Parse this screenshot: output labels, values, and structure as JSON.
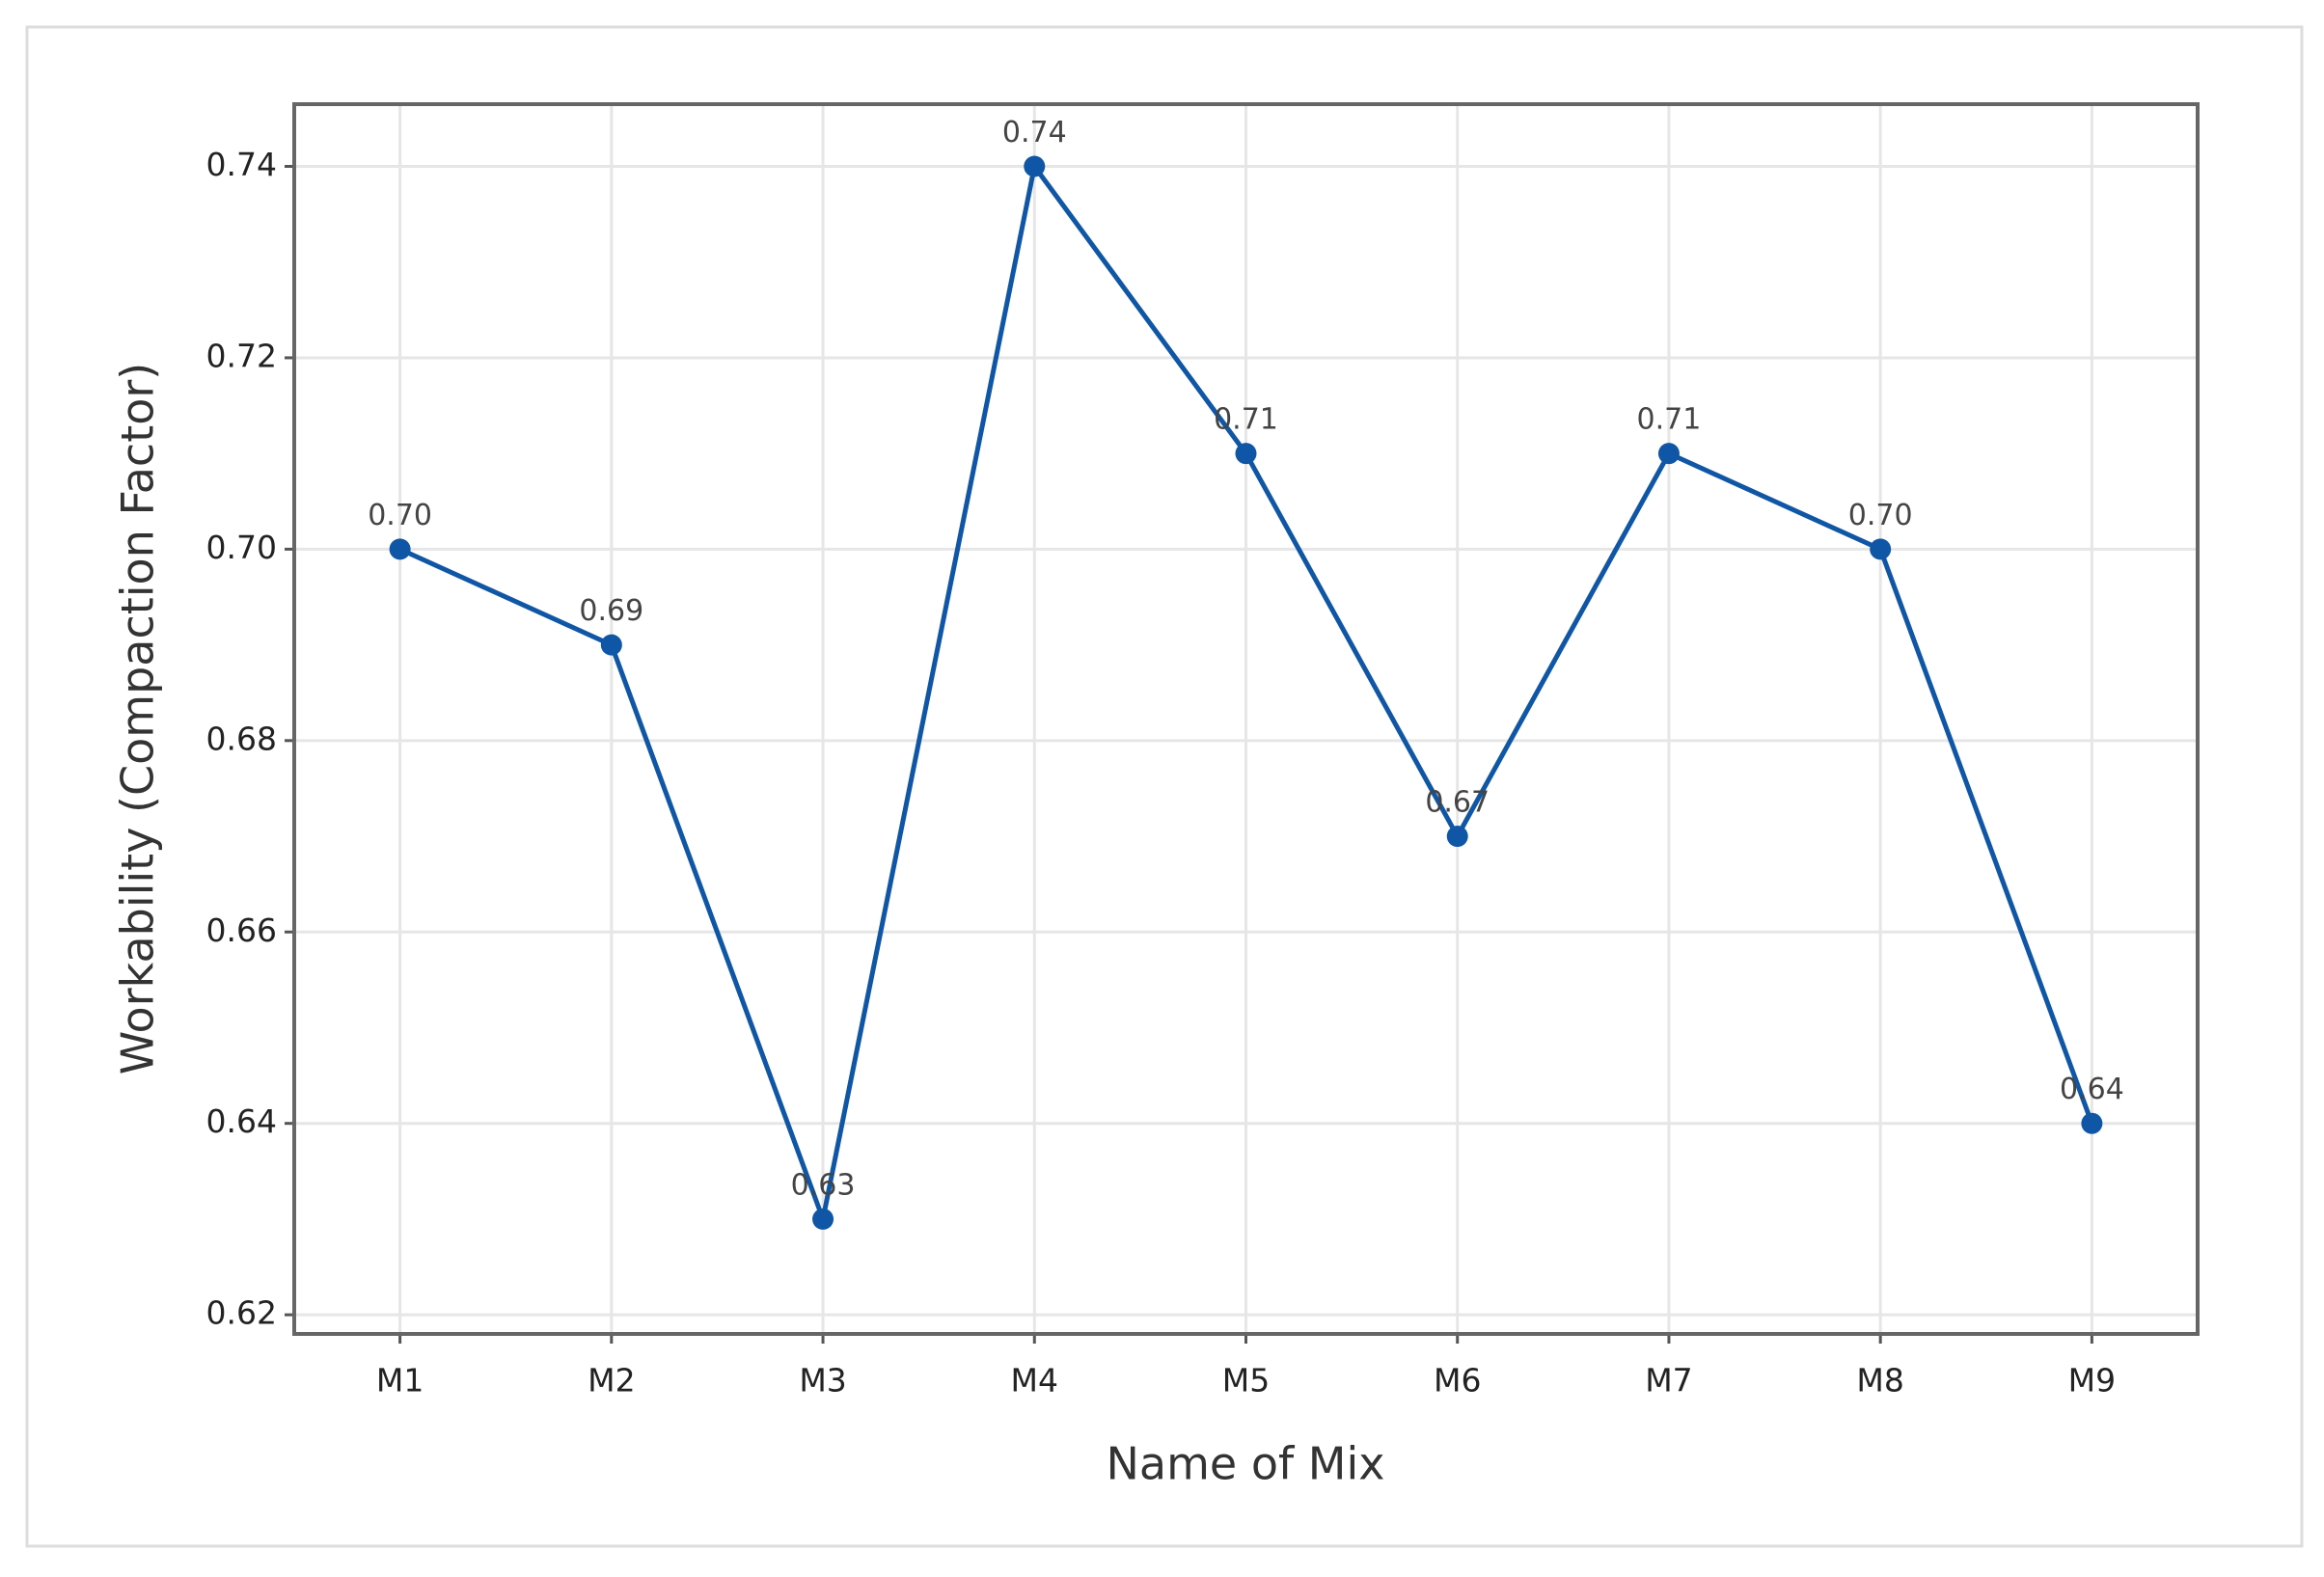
{
  "chart_data": {
    "type": "line",
    "x_label": "Name of Mix",
    "y_label": "Workability (Compaction Factor)",
    "categories": [
      "M1",
      "M2",
      "M3",
      "M4",
      "M5",
      "M6",
      "M7",
      "M8",
      "M9"
    ],
    "series": [
      {
        "color": "#0f56a6",
        "values": [
          0.7,
          0.69,
          0.63,
          0.74,
          0.71,
          0.67,
          0.71,
          0.7,
          0.64
        ],
        "value_labels": [
          "0.70",
          "0.69",
          "0.63",
          "0.74",
          "0.71",
          "0.67",
          "0.71",
          "0.70",
          "0.64"
        ]
      }
    ],
    "ylim": [
      0.618,
      0.7465
    ],
    "yticks": [
      0.62,
      0.64,
      0.66,
      0.68,
      {
        "value": 0.7,
        "label": "0.70"
      },
      0.72,
      0.74
    ],
    "grid": true
  }
}
